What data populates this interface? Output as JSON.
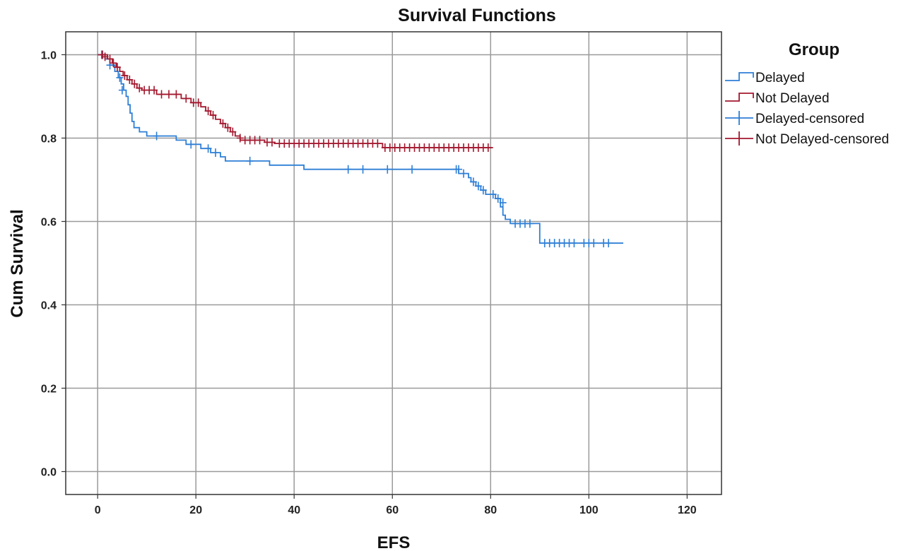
{
  "chart_data": {
    "type": "line",
    "subtype": "kaplan-meier step",
    "title": "Survival Functions",
    "xlabel": "EFS",
    "ylabel": "Cum Survival",
    "xlim": [
      -6.5,
      127
    ],
    "ylim": [
      -0.055,
      1.055
    ],
    "xticks": [
      0,
      20,
      40,
      60,
      80,
      100,
      120
    ],
    "yticks": [
      0.0,
      0.2,
      0.4,
      0.6,
      0.8,
      1.0
    ],
    "xtick_labels": [
      "0",
      "20",
      "40",
      "60",
      "80",
      "100",
      "120"
    ],
    "ytick_labels": [
      "0.0",
      "0.2",
      "0.4",
      "0.6",
      "0.8",
      "1.0"
    ],
    "grid": true,
    "legend": {
      "title": "Group",
      "position": "right",
      "entries": [
        "Delayed",
        "Not Delayed",
        "Delayed-censored",
        "Not Delayed-censored"
      ]
    },
    "colors": {
      "delayed": "#2e7fd6",
      "not_delayed": "#a3182e",
      "grid": "#9a9a9a",
      "frame": "#333333"
    },
    "series": [
      {
        "name": "Delayed",
        "color": "#2e7fd6",
        "steps": [
          [
            0,
            1.0
          ],
          [
            1.5,
            0.99
          ],
          [
            2.5,
            0.975
          ],
          [
            3.5,
            0.96
          ],
          [
            4.2,
            0.945
          ],
          [
            4.8,
            0.93
          ],
          [
            5.3,
            0.915
          ],
          [
            5.8,
            0.9
          ],
          [
            6.2,
            0.88
          ],
          [
            6.6,
            0.86
          ],
          [
            7.0,
            0.84
          ],
          [
            7.4,
            0.825
          ],
          [
            8.5,
            0.815
          ],
          [
            10.0,
            0.805
          ],
          [
            16.0,
            0.795
          ],
          [
            18.0,
            0.785
          ],
          [
            21.0,
            0.775
          ],
          [
            23.0,
            0.765
          ],
          [
            25.0,
            0.755
          ],
          [
            26.0,
            0.745
          ],
          [
            35.0,
            0.735
          ],
          [
            42.0,
            0.725
          ],
          [
            73.5,
            0.715
          ],
          [
            75.5,
            0.705
          ],
          [
            76.0,
            0.695
          ],
          [
            77.0,
            0.685
          ],
          [
            78.0,
            0.675
          ],
          [
            79.0,
            0.665
          ],
          [
            81.0,
            0.655
          ],
          [
            82.0,
            0.635
          ],
          [
            82.5,
            0.615
          ],
          [
            83.0,
            0.605
          ],
          [
            84.0,
            0.595
          ],
          [
            90.0,
            0.548
          ],
          [
            107.0,
            0.548
          ]
        ],
        "censored": [
          [
            0.8,
            1.0
          ],
          [
            2.5,
            0.975
          ],
          [
            4.5,
            0.945
          ],
          [
            5.0,
            0.915
          ],
          [
            12.0,
            0.805
          ],
          [
            19.0,
            0.785
          ],
          [
            22.5,
            0.775
          ],
          [
            24.0,
            0.765
          ],
          [
            31.0,
            0.745
          ],
          [
            51.0,
            0.725
          ],
          [
            54.0,
            0.725
          ],
          [
            59.0,
            0.725
          ],
          [
            64.0,
            0.725
          ],
          [
            73.0,
            0.725
          ],
          [
            73.5,
            0.725
          ],
          [
            74.5,
            0.715
          ],
          [
            76.5,
            0.695
          ],
          [
            77.5,
            0.685
          ],
          [
            78.5,
            0.675
          ],
          [
            80.5,
            0.665
          ],
          [
            81.5,
            0.655
          ],
          [
            82.5,
            0.645
          ],
          [
            85.0,
            0.595
          ],
          [
            86.0,
            0.595
          ],
          [
            87.0,
            0.595
          ],
          [
            88.0,
            0.595
          ],
          [
            91.0,
            0.548
          ],
          [
            92.0,
            0.548
          ],
          [
            93.0,
            0.548
          ],
          [
            94.0,
            0.548
          ],
          [
            95.0,
            0.548
          ],
          [
            96.0,
            0.548
          ],
          [
            97.0,
            0.548
          ],
          [
            99.0,
            0.548
          ],
          [
            100.0,
            0.548
          ],
          [
            101.0,
            0.548
          ],
          [
            103.0,
            0.548
          ],
          [
            104.0,
            0.548
          ]
        ]
      },
      {
        "name": "Not Delayed",
        "color": "#a3182e",
        "steps": [
          [
            0,
            1.0
          ],
          [
            2.0,
            0.99
          ],
          [
            3.0,
            0.98
          ],
          [
            3.8,
            0.97
          ],
          [
            4.5,
            0.96
          ],
          [
            5.2,
            0.95
          ],
          [
            6.0,
            0.94
          ],
          [
            7.0,
            0.93
          ],
          [
            8.0,
            0.92
          ],
          [
            9.0,
            0.915
          ],
          [
            12.0,
            0.905
          ],
          [
            17.0,
            0.895
          ],
          [
            19.0,
            0.885
          ],
          [
            21.0,
            0.875
          ],
          [
            22.0,
            0.865
          ],
          [
            23.0,
            0.855
          ],
          [
            24.0,
            0.845
          ],
          [
            25.0,
            0.835
          ],
          [
            26.0,
            0.825
          ],
          [
            27.0,
            0.815
          ],
          [
            28.0,
            0.805
          ],
          [
            29.0,
            0.795
          ],
          [
            34.0,
            0.79
          ],
          [
            36.0,
            0.787
          ],
          [
            58.0,
            0.777
          ],
          [
            80.5,
            0.777
          ]
        ],
        "censored": [
          [
            1.0,
            1.0
          ],
          [
            1.5,
            0.995
          ],
          [
            2.5,
            0.99
          ],
          [
            3.2,
            0.98
          ],
          [
            4.0,
            0.97
          ],
          [
            5.5,
            0.95
          ],
          [
            6.5,
            0.94
          ],
          [
            7.5,
            0.93
          ],
          [
            8.5,
            0.92
          ],
          [
            9.5,
            0.915
          ],
          [
            10.5,
            0.915
          ],
          [
            11.5,
            0.915
          ],
          [
            13.0,
            0.905
          ],
          [
            14.5,
            0.905
          ],
          [
            16.0,
            0.905
          ],
          [
            18.0,
            0.895
          ],
          [
            19.5,
            0.885
          ],
          [
            20.5,
            0.885
          ],
          [
            22.5,
            0.865
          ],
          [
            23.5,
            0.855
          ],
          [
            25.5,
            0.835
          ],
          [
            26.5,
            0.825
          ],
          [
            27.5,
            0.815
          ],
          [
            29.0,
            0.8
          ],
          [
            30.0,
            0.795
          ],
          [
            31.0,
            0.795
          ],
          [
            32.0,
            0.795
          ],
          [
            33.0,
            0.795
          ],
          [
            34.5,
            0.79
          ],
          [
            35.5,
            0.79
          ],
          [
            37.0,
            0.787
          ],
          [
            38.0,
            0.787
          ],
          [
            39.0,
            0.787
          ],
          [
            40.0,
            0.787
          ],
          [
            41.0,
            0.787
          ],
          [
            42.0,
            0.787
          ],
          [
            43.0,
            0.787
          ],
          [
            44.0,
            0.787
          ],
          [
            45.0,
            0.787
          ],
          [
            46.0,
            0.787
          ],
          [
            47.0,
            0.787
          ],
          [
            48.0,
            0.787
          ],
          [
            49.0,
            0.787
          ],
          [
            50.0,
            0.787
          ],
          [
            51.0,
            0.787
          ],
          [
            52.0,
            0.787
          ],
          [
            53.0,
            0.787
          ],
          [
            54.0,
            0.787
          ],
          [
            55.0,
            0.787
          ],
          [
            56.0,
            0.787
          ],
          [
            57.0,
            0.787
          ],
          [
            58.5,
            0.777
          ],
          [
            59.5,
            0.777
          ],
          [
            60.5,
            0.777
          ],
          [
            61.5,
            0.777
          ],
          [
            62.5,
            0.777
          ],
          [
            63.5,
            0.777
          ],
          [
            64.5,
            0.777
          ],
          [
            65.5,
            0.777
          ],
          [
            66.5,
            0.777
          ],
          [
            67.5,
            0.777
          ],
          [
            68.5,
            0.777
          ],
          [
            69.5,
            0.777
          ],
          [
            70.5,
            0.777
          ],
          [
            71.5,
            0.777
          ],
          [
            72.5,
            0.777
          ],
          [
            73.5,
            0.777
          ],
          [
            74.5,
            0.777
          ],
          [
            75.5,
            0.777
          ],
          [
            76.5,
            0.777
          ],
          [
            77.5,
            0.777
          ],
          [
            78.5,
            0.777
          ],
          [
            79.5,
            0.777
          ]
        ]
      }
    ]
  }
}
